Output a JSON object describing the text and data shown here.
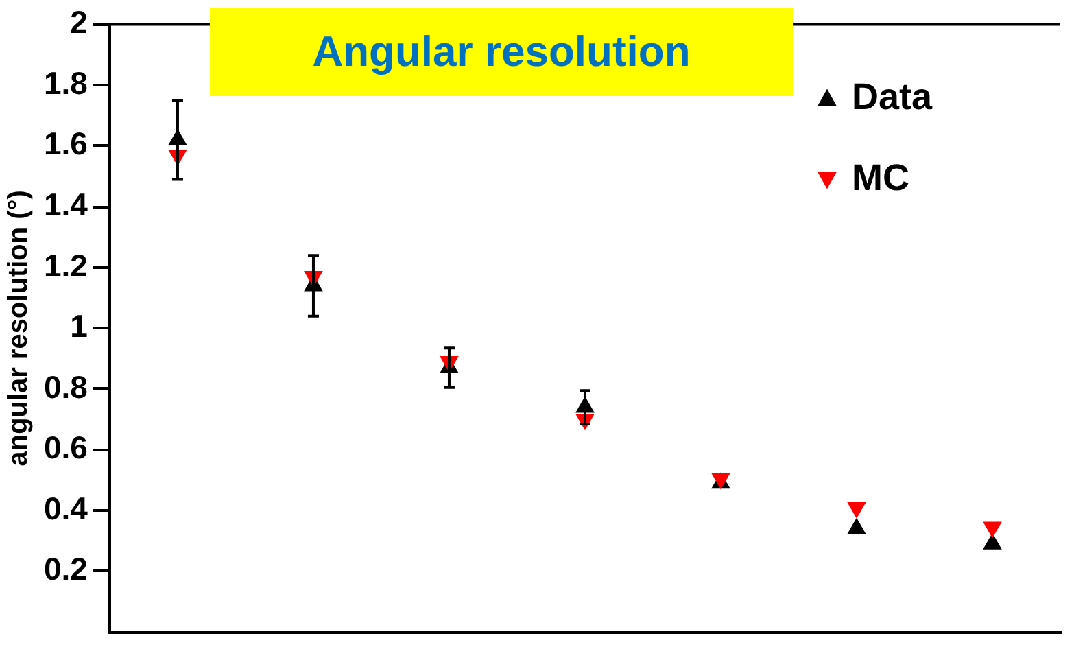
{
  "chart_data": {
    "type": "scatter",
    "title": "Angular resolution",
    "ylabel": "angular resolution (°)",
    "categories": [
      null,
      null,
      null,
      null,
      null,
      null,
      null
    ],
    "ylim": [
      0,
      2
    ],
    "yticks": [
      0.2,
      0.4,
      0.6,
      0.8,
      1,
      1.2,
      1.4,
      1.6,
      1.8,
      2
    ],
    "grid": false,
    "legend": "top right",
    "series": [
      {
        "name": "Data",
        "color": "#000000",
        "marker": "triangle",
        "values": [
          1.62,
          1.14,
          0.87,
          0.74,
          0.49,
          0.34,
          0.29
        ],
        "errors": [
          0.13,
          0.1,
          0.065,
          0.055,
          null,
          null,
          null
        ]
      },
      {
        "name": "MC",
        "color": "#ff0000",
        "marker": "triangle-down",
        "values": [
          1.57,
          1.17,
          0.89,
          0.7,
          0.505,
          0.41,
          0.345
        ]
      }
    ]
  }
}
